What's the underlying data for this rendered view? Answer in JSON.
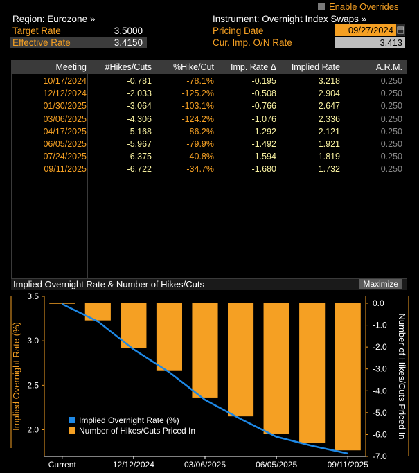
{
  "header": {
    "override_label": "Enable Overrides",
    "region": "Region: Eurozone »",
    "instrument": "Instrument: Overnight Index Swaps »",
    "target_rate_label": "Target Rate",
    "target_rate_value": "3.5000",
    "effective_rate_label": "Effective Rate",
    "effective_rate_value": "3.4150",
    "pricing_date_label": "Pricing Date",
    "pricing_date_value": "09/27/2024",
    "cur_imp_label": "Cur. Imp. O/N Rate",
    "cur_imp_value": "3.413"
  },
  "table": {
    "columns": [
      "Meeting",
      "#Hikes/Cuts",
      "%Hike/Cut",
      "Imp. Rate Δ",
      "Implied Rate",
      "A.R.M."
    ],
    "rows": [
      [
        "10/17/2024",
        "-0.781",
        "-78.1%",
        "-0.195",
        "3.218",
        "0.250"
      ],
      [
        "12/12/2024",
        "-2.033",
        "-125.2%",
        "-0.508",
        "2.904",
        "0.250"
      ],
      [
        "01/30/2025",
        "-3.064",
        "-103.1%",
        "-0.766",
        "2.647",
        "0.250"
      ],
      [
        "03/06/2025",
        "-4.306",
        "-124.2%",
        "-1.076",
        "2.336",
        "0.250"
      ],
      [
        "04/17/2025",
        "-5.168",
        "-86.2%",
        "-1.292",
        "2.121",
        "0.250"
      ],
      [
        "06/05/2025",
        "-5.967",
        "-79.9%",
        "-1.492",
        "1.921",
        "0.250"
      ],
      [
        "07/24/2025",
        "-6.375",
        "-40.8%",
        "-1.594",
        "1.819",
        "0.250"
      ],
      [
        "09/11/2025",
        "-6.722",
        "-34.7%",
        "-1.680",
        "1.732",
        "0.250"
      ]
    ]
  },
  "chart_panel": {
    "title": "Implied Overnight Rate & Number of Hikes/Cuts",
    "maximize_label": "Maximize"
  },
  "chart_data": {
    "type": "bar",
    "title": "Implied Overnight Rate & Number of Hikes/Cuts",
    "categories": [
      "Current",
      "10/17/2024",
      "12/12/2024",
      "01/30/2025",
      "03/06/2025",
      "04/17/2025",
      "06/05/2025",
      "07/24/2025",
      "09/11/2025"
    ],
    "x_tick_labels": [
      "Current",
      "12/12/2024",
      "03/06/2025",
      "06/05/2025",
      "09/11/2025"
    ],
    "series": [
      {
        "name": "Implied Overnight Rate (%)",
        "type": "line",
        "axis": "left",
        "values": [
          3.413,
          3.218,
          2.904,
          2.647,
          2.336,
          2.121,
          1.921,
          1.819,
          1.732
        ],
        "color": "#1e88e5"
      },
      {
        "name": "Number of Hikes/Cuts Priced In",
        "type": "bar",
        "axis": "right",
        "values": [
          0,
          -0.781,
          -2.033,
          -3.064,
          -4.306,
          -5.168,
          -5.967,
          -6.375,
          -6.722
        ],
        "color": "#f5a023"
      }
    ],
    "ylabel": "Implied Overnight Rate (%)",
    "ylabel_right": "Number of Hikes/Cuts Priced In",
    "ylim": [
      1.7,
      3.5
    ],
    "ylim_right": [
      -7.0,
      0.0
    ],
    "yticks": [
      "3.5",
      "3.0",
      "2.5",
      "2.0"
    ],
    "yticks_right": [
      "0.0",
      "-1.0",
      "-2.0",
      "-3.0",
      "-4.0",
      "-5.0",
      "-6.0",
      "-7.0"
    ],
    "legend_position": "bottom-left"
  },
  "colors": {
    "accent_orange": "#f5a023",
    "line_blue": "#1e88e5",
    "background": "#000000"
  }
}
